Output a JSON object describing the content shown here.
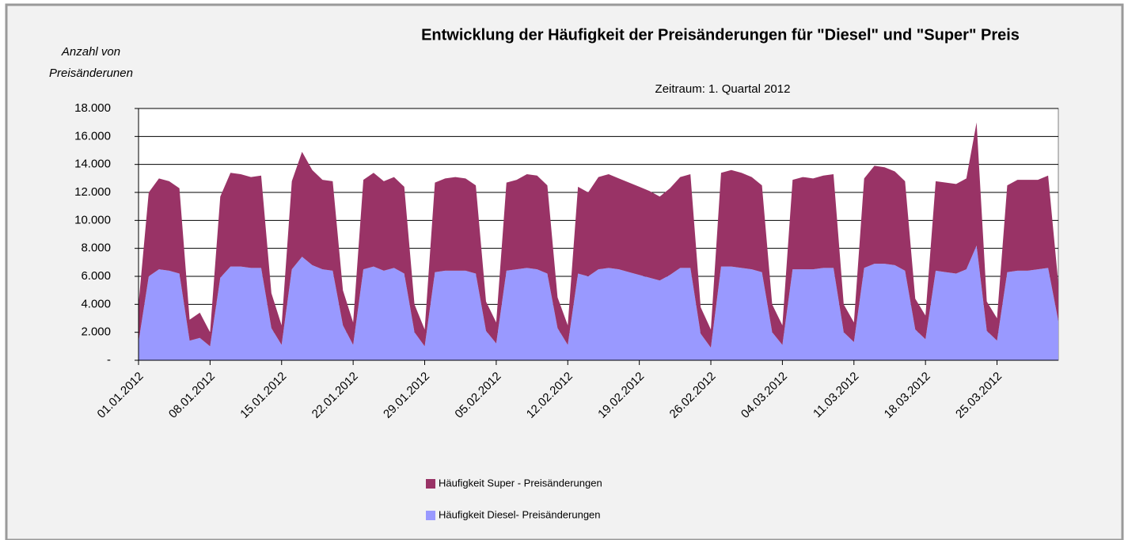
{
  "chart_data": {
    "type": "stacked_area",
    "title": "Entwicklung der Häufigkeit der Preisänderungen für \"Diesel\" und \"Super\" Preis",
    "subtitle": "Zeitraum: 1. Quartal 2012",
    "y_label": "Anzahl von Preisänderunen",
    "categories": [
      "01.01.2012",
      null,
      null,
      null,
      null,
      null,
      null,
      "08.01.2012",
      null,
      null,
      null,
      null,
      null,
      null,
      "15.01.2012",
      null,
      null,
      null,
      null,
      null,
      null,
      "22.01.2012",
      null,
      null,
      null,
      null,
      null,
      null,
      "29.01.2012",
      null,
      null,
      null,
      null,
      null,
      null,
      "05.02.2012",
      null,
      null,
      null,
      null,
      null,
      null,
      "12.02.2012",
      null,
      null,
      null,
      null,
      null,
      null,
      "19.02.2012",
      null,
      null,
      null,
      null,
      null,
      null,
      "26.02.2012",
      null,
      null,
      null,
      null,
      null,
      null,
      "04.03.2012",
      null,
      null,
      null,
      null,
      null,
      null,
      "11.03.2012",
      null,
      null,
      null,
      null,
      null,
      null,
      "18.03.2012",
      null,
      null,
      null,
      null,
      null,
      null,
      "25.03.2012",
      null,
      null,
      null,
      null,
      null,
      null
    ],
    "series": [
      {
        "name": "Häufigkeit Super - Preisänderungen",
        "color": "#993366",
        "values": [
          2700,
          6000,
          6500,
          6400,
          6100,
          1500,
          1800,
          1000,
          5800,
          6700,
          6600,
          6500,
          6600,
          2500,
          1400,
          6300,
          7500,
          6800,
          6400,
          6400,
          2500,
          1600,
          6400,
          6700,
          6400,
          6500,
          6200,
          2000,
          1200,
          6400,
          6600,
          6700,
          6600,
          6300,
          2100,
          1500,
          6300,
          6400,
          6700,
          6700,
          6300,
          2200,
          1400,
          6200,
          6000,
          6600,
          6700,
          6500,
          6400,
          6300,
          6200,
          6000,
          6200,
          6500,
          6700,
          1900,
          1300,
          6700,
          6900,
          6800,
          6600,
          6200,
          2000,
          1400,
          6400,
          6600,
          6500,
          6600,
          6700,
          2000,
          1400,
          6400,
          7000,
          6900,
          6700,
          6400,
          2200,
          1700,
          6400,
          6400,
          6400,
          6500,
          8800,
          2100,
          1600,
          6200,
          6500,
          6500,
          6400,
          6600,
          2700
        ]
      },
      {
        "name": "Häufigkeit Diesel- Preisänderungen",
        "color": "#9999ff",
        "values": [
          1300,
          6000,
          6500,
          6400,
          6200,
          1400,
          1600,
          1000,
          5900,
          6700,
          6700,
          6600,
          6600,
          2300,
          1100,
          6500,
          7400,
          6800,
          6500,
          6400,
          2500,
          1100,
          6500,
          6700,
          6400,
          6600,
          6200,
          2000,
          1000,
          6300,
          6400,
          6400,
          6400,
          6200,
          2100,
          1200,
          6400,
          6500,
          6600,
          6500,
          6200,
          2300,
          1100,
          6200,
          6000,
          6500,
          6600,
          6500,
          6300,
          6100,
          5900,
          5700,
          6100,
          6600,
          6600,
          1900,
          900,
          6700,
          6700,
          6600,
          6500,
          6300,
          2000,
          1100,
          6500,
          6500,
          6500,
          6600,
          6600,
          2000,
          1300,
          6600,
          6900,
          6900,
          6800,
          6400,
          2200,
          1500,
          6400,
          6300,
          6200,
          6500,
          8200,
          2100,
          1400,
          6300,
          6400,
          6400,
          6500,
          6600,
          2800
        ]
      }
    ],
    "ylim": [
      0,
      18000
    ],
    "yticks": [
      {
        "value": 0,
        "label": "-"
      },
      {
        "value": 2000,
        "label": "2.000"
      },
      {
        "value": 4000,
        "label": "4.000"
      },
      {
        "value": 6000,
        "label": "6.000"
      },
      {
        "value": 8000,
        "label": "8.000"
      },
      {
        "value": 10000,
        "label": "10.000"
      },
      {
        "value": 12000,
        "label": "12.000"
      },
      {
        "value": 14000,
        "label": "14.000"
      },
      {
        "value": 16000,
        "label": "16.000"
      },
      {
        "value": 18000,
        "label": "18.000"
      }
    ],
    "grid": true
  }
}
